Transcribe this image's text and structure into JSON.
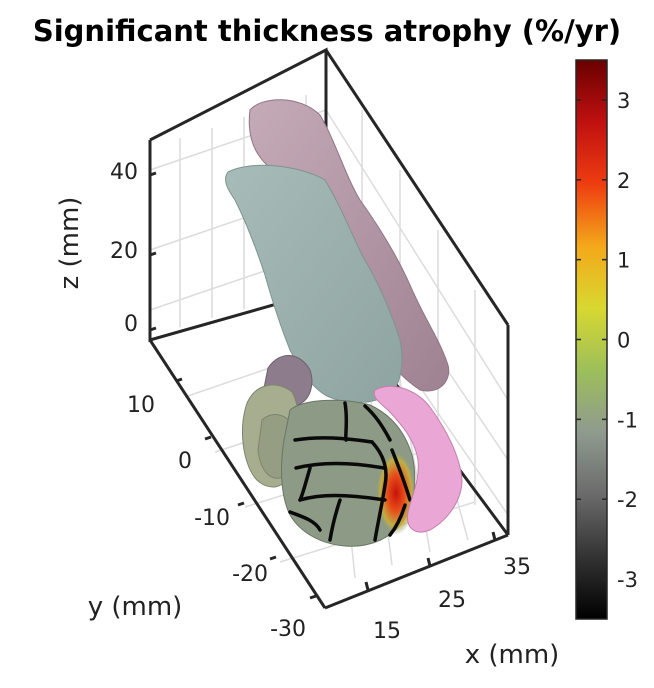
{
  "chart_data": {
    "type": "surface3d",
    "title": "Significant thickness atrophy (%/yr)",
    "xlabel": "x (mm)",
    "ylabel": "y (mm)",
    "zlabel": "z (mm)",
    "x_ticks": [
      15,
      25,
      35
    ],
    "y_ticks": [
      10,
      0,
      -10,
      -20,
      -30
    ],
    "z_ticks": [
      0,
      20,
      40
    ],
    "xlim": [
      10,
      38
    ],
    "ylim": [
      -32,
      18
    ],
    "zlim": [
      -3,
      55
    ],
    "grid": true,
    "colorbar": {
      "colormap": "hot-gray-jet",
      "ticks": [
        3,
        2,
        1,
        0,
        -1,
        -2,
        -3
      ],
      "range": [
        -3.5,
        3.5
      ],
      "colors": [
        "#000000",
        "#333333",
        "#6a6a6a",
        "#8f9a8f",
        "#9cbf5a",
        "#d8d830",
        "#f4a81a",
        "#ee3d10",
        "#c01010",
        "#6a0000"
      ]
    },
    "region_colors": {
      "cortex_pink": "#b69aaa",
      "cortex_teal": "#9fb3b0",
      "hippocampus_pink": "#e8a4d2",
      "subregion_gray": "#8c9a86",
      "atrophy_peak": "#d8220a"
    }
  }
}
